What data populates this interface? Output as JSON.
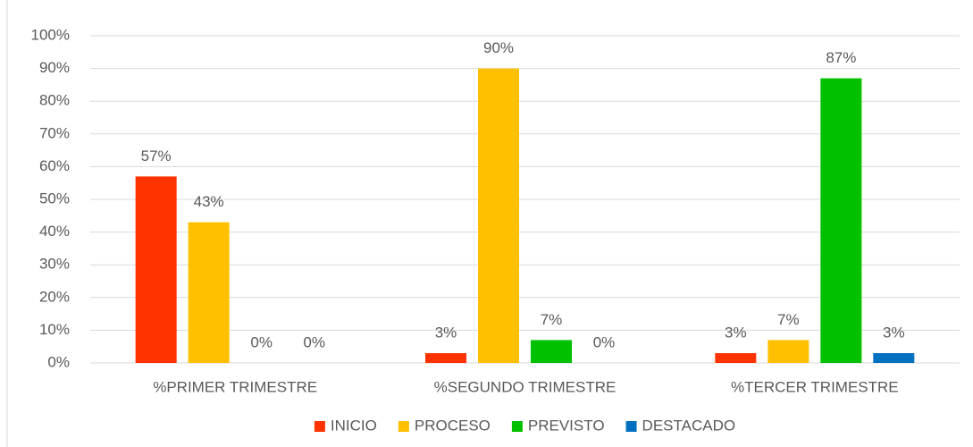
{
  "chart_data": {
    "type": "bar",
    "categories": [
      "%PRIMER TRIMESTRE",
      "%SEGUNDO TRIMESTRE",
      "%TERCER TRIMESTRE"
    ],
    "series": [
      {
        "name": "INICIO",
        "color": "#ff3300",
        "values": [
          57,
          3,
          3
        ],
        "value_labels": [
          "57%",
          "3%",
          "3%"
        ]
      },
      {
        "name": "PROCESO",
        "color": "#ffc000",
        "values": [
          43,
          90,
          7
        ],
        "value_labels": [
          "43%",
          "90%",
          "7%"
        ]
      },
      {
        "name": "PREVISTO",
        "color": "#00c000",
        "values": [
          0,
          7,
          87
        ],
        "value_labels": [
          "0%",
          "7%",
          "87%"
        ]
      },
      {
        "name": "DESTACADO",
        "color": "#0070c0",
        "values": [
          0,
          0,
          3
        ],
        "value_labels": [
          "0%",
          "0%",
          "3%"
        ]
      }
    ],
    "ylim": [
      0,
      100
    ],
    "yticks": [
      {
        "value": 0,
        "label": "0%"
      },
      {
        "value": 10,
        "label": "10%"
      },
      {
        "value": 20,
        "label": "20%"
      },
      {
        "value": 30,
        "label": "30%"
      },
      {
        "value": 40,
        "label": "40%"
      },
      {
        "value": 50,
        "label": "50%"
      },
      {
        "value": 60,
        "label": "60%"
      },
      {
        "value": 70,
        "label": "70%"
      },
      {
        "value": 80,
        "label": "80%"
      },
      {
        "value": 90,
        "label": "90%"
      },
      {
        "value": 100,
        "label": "100%"
      }
    ],
    "grid": true,
    "legend": "bottom"
  }
}
